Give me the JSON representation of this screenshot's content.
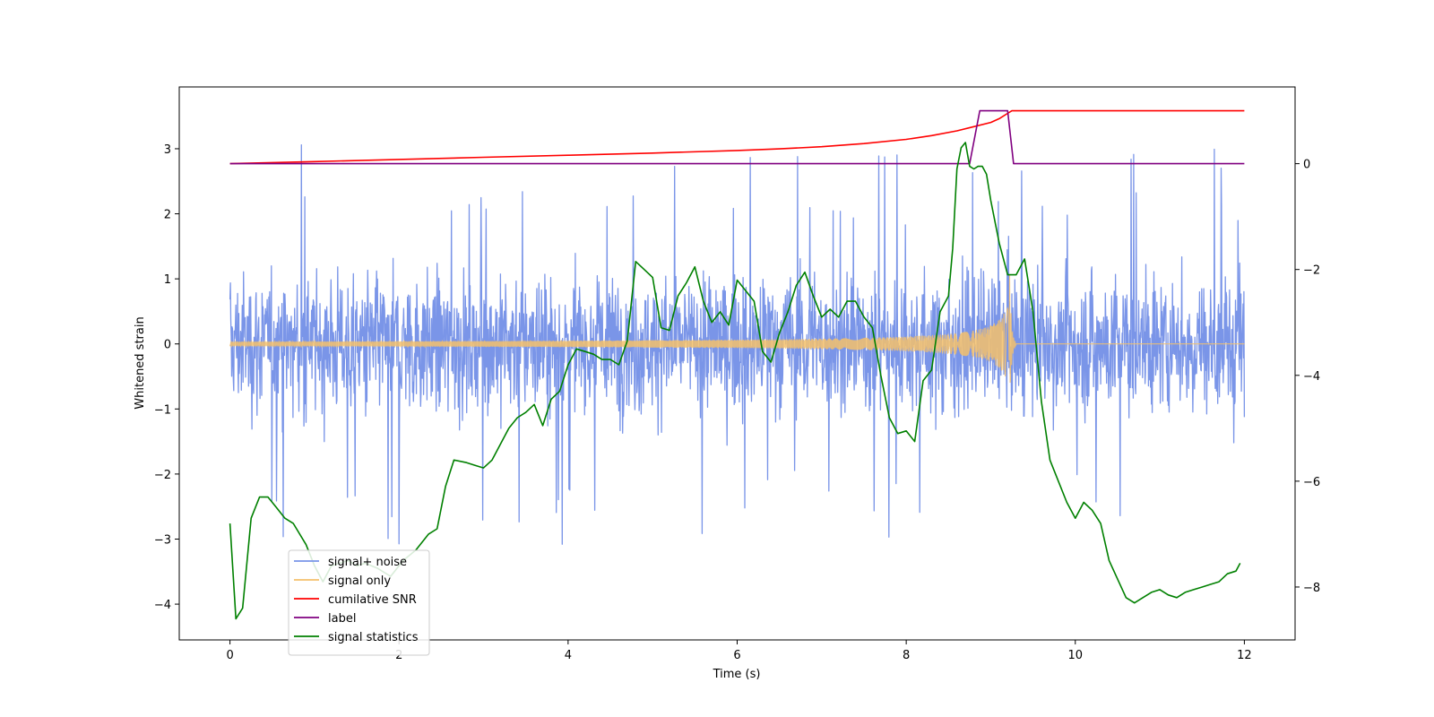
{
  "chart_data": {
    "type": "line",
    "title": "",
    "xlabel": "Time (s)",
    "ylabel": "Whitened strain",
    "ylabel_right": "",
    "xlim": [
      -0.6,
      12.6
    ],
    "ylim": [
      -4.55,
      3.95
    ],
    "ylim_right": [
      -9.0,
      1.45
    ],
    "grid": false,
    "legend_position": "lower-left",
    "x_ticks": [
      0,
      2,
      4,
      6,
      8,
      10,
      12
    ],
    "x_tick_labels": [
      "0",
      "2",
      "4",
      "6",
      "8",
      "10",
      "12"
    ],
    "y_ticks": [
      -4,
      -3,
      -2,
      -1,
      0,
      1,
      2,
      3
    ],
    "y_tick_labels": [
      "−4",
      "−3",
      "−2",
      "−1",
      "0",
      "1",
      "2",
      "3"
    ],
    "y_ticks_right": [
      -8,
      -6,
      -4,
      -2,
      0
    ],
    "y_tick_labels_right": [
      "−8",
      "−6",
      "−4",
      "−2",
      "0"
    ],
    "series": [
      {
        "name": "signal+ noise",
        "color": "#7a95e8",
        "axis": "left",
        "kind": "noise-band",
        "x_range": [
          0,
          12
        ],
        "typical_amplitude": 1.6,
        "max_abs": 3.1
      },
      {
        "name": "signal only",
        "color": "#f5c16b",
        "axis": "left",
        "kind": "chirp",
        "x_range": [
          0,
          12
        ],
        "merger_time": 9.22,
        "peak_amplitude": 1.3,
        "peak_amplitude_negative": -1.0
      },
      {
        "name": "cumilative SNR",
        "color": "#ff0000",
        "axis": "right",
        "x": [
          0,
          1,
          2,
          3,
          4,
          5,
          6,
          6.5,
          7,
          7.5,
          8,
          8.3,
          8.6,
          8.8,
          9.0,
          9.1,
          9.2,
          9.25,
          9.3,
          10,
          11,
          12
        ],
        "y": [
          0,
          0.04,
          0.08,
          0.12,
          0.16,
          0.2,
          0.25,
          0.28,
          0.32,
          0.38,
          0.46,
          0.53,
          0.62,
          0.7,
          0.78,
          0.85,
          0.95,
          1.0,
          1.0,
          1.0,
          1.0,
          1.0
        ]
      },
      {
        "name": "label",
        "color": "#800080",
        "axis": "right",
        "x": [
          0,
          8.75,
          8.87,
          9.2,
          9.27,
          12
        ],
        "y": [
          0,
          0,
          1,
          1,
          0,
          0
        ]
      },
      {
        "name": "signal statistics",
        "color": "#008000",
        "axis": "right",
        "x": [
          0,
          0.07,
          0.15,
          0.25,
          0.35,
          0.45,
          0.55,
          0.65,
          0.75,
          0.9,
          1.0,
          1.1,
          1.2,
          1.3,
          1.4,
          1.5,
          1.6,
          1.75,
          1.9,
          2.05,
          2.2,
          2.35,
          2.45,
          2.55,
          2.65,
          2.8,
          2.9,
          3.0,
          3.1,
          3.2,
          3.3,
          3.4,
          3.5,
          3.6,
          3.7,
          3.8,
          3.9,
          4.0,
          4.1,
          4.2,
          4.3,
          4.4,
          4.5,
          4.6,
          4.7,
          4.8,
          4.9,
          5.0,
          5.1,
          5.2,
          5.3,
          5.4,
          5.5,
          5.6,
          5.7,
          5.8,
          5.9,
          6.0,
          6.1,
          6.2,
          6.3,
          6.4,
          6.5,
          6.6,
          6.7,
          6.8,
          6.9,
          7.0,
          7.1,
          7.2,
          7.3,
          7.4,
          7.5,
          7.6,
          7.7,
          7.8,
          7.9,
          8.0,
          8.1,
          8.2,
          8.3,
          8.4,
          8.5,
          8.55,
          8.6,
          8.65,
          8.7,
          8.75,
          8.8,
          8.85,
          8.9,
          8.95,
          9.0,
          9.1,
          9.2,
          9.3,
          9.4,
          9.5,
          9.6,
          9.7,
          9.8,
          9.9,
          10.0,
          10.1,
          10.2,
          10.3,
          10.4,
          10.5,
          10.6,
          10.7,
          10.8,
          10.9,
          11.0,
          11.1,
          11.2,
          11.3,
          11.4,
          11.5,
          11.6,
          11.7,
          11.8,
          11.9,
          11.95
        ],
        "y": [
          -6.8,
          -8.6,
          -8.4,
          -6.7,
          -6.3,
          -6.3,
          -6.5,
          -6.7,
          -6.8,
          -7.2,
          -7.6,
          -7.9,
          -7.6,
          -7.55,
          -7.5,
          -7.6,
          -7.55,
          -7.65,
          -7.8,
          -7.5,
          -7.3,
          -7.0,
          -6.9,
          -6.1,
          -5.6,
          -5.65,
          -5.7,
          -5.75,
          -5.6,
          -5.3,
          -5.0,
          -4.8,
          -4.7,
          -4.55,
          -4.95,
          -4.45,
          -4.3,
          -3.8,
          -3.5,
          -3.55,
          -3.6,
          -3.7,
          -3.7,
          -3.8,
          -3.35,
          -1.85,
          -2.0,
          -2.15,
          -3.1,
          -3.15,
          -2.5,
          -2.25,
          -1.95,
          -2.6,
          -3.0,
          -2.8,
          -3.05,
          -2.2,
          -2.4,
          -2.6,
          -3.55,
          -3.75,
          -3.2,
          -2.8,
          -2.3,
          -2.05,
          -2.5,
          -2.9,
          -2.75,
          -2.9,
          -2.6,
          -2.6,
          -2.9,
          -3.1,
          -4.0,
          -4.8,
          -5.1,
          -5.05,
          -5.25,
          -4.1,
          -3.9,
          -2.8,
          -2.5,
          -1.6,
          -0.1,
          0.3,
          0.4,
          -0.05,
          -0.1,
          -0.05,
          -0.05,
          -0.2,
          -0.7,
          -1.5,
          -2.1,
          -2.1,
          -1.8,
          -2.8,
          -4.5,
          -5.6,
          -6.0,
          -6.4,
          -6.7,
          -6.4,
          -6.55,
          -6.8,
          -7.5,
          -7.85,
          -8.2,
          -8.3,
          -8.2,
          -8.1,
          -8.05,
          -8.15,
          -8.2,
          -8.1,
          -8.05,
          -8.0,
          -7.95,
          -7.9,
          -7.75,
          -7.7,
          -7.55
        ]
      }
    ]
  }
}
